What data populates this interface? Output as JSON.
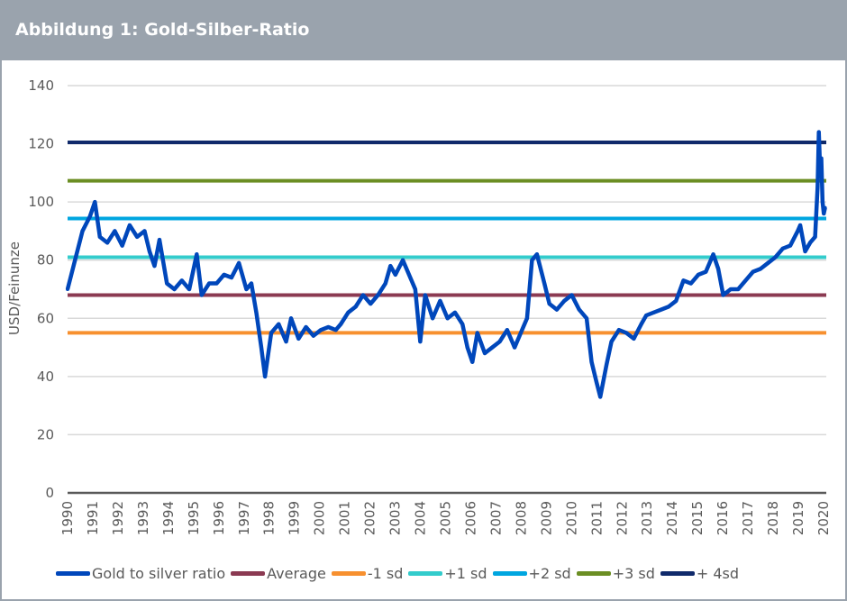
{
  "header": {
    "title": "Abbildung 1: Gold-Silber-Ratio"
  },
  "chart_data": {
    "type": "line",
    "title": "Abbildung 1: Gold-Silber-Ratio",
    "ylabel": "USD/Feinunze",
    "xlabel": "",
    "ylim": [
      0,
      140
    ],
    "yticks": [
      "0",
      "20",
      "40",
      "60",
      "80",
      "100",
      "120",
      "140"
    ],
    "xticks": [
      "1990",
      "1991",
      "1992",
      "1993",
      "1994",
      "1995",
      "1996",
      "1997",
      "1998",
      "1999",
      "2000",
      "2001",
      "2002",
      "2003",
      "2004",
      "2005",
      "2006",
      "2007",
      "2008",
      "2009",
      "2010",
      "2011",
      "2012",
      "2013",
      "2014",
      "2015",
      "2016",
      "2017",
      "2018",
      "2019",
      "2020"
    ],
    "grid": true,
    "legend_position": "bottom",
    "series": [
      {
        "name": "Gold to silver ratio",
        "color": "#0047bb",
        "points": [
          [
            1990.0,
            70
          ],
          [
            1990.3,
            80
          ],
          [
            1990.6,
            90
          ],
          [
            1990.9,
            95
          ],
          [
            1991.1,
            100
          ],
          [
            1991.3,
            88
          ],
          [
            1991.6,
            86
          ],
          [
            1991.9,
            90
          ],
          [
            1992.2,
            85
          ],
          [
            1992.5,
            92
          ],
          [
            1992.8,
            88
          ],
          [
            1993.1,
            90
          ],
          [
            1993.3,
            83
          ],
          [
            1993.5,
            78
          ],
          [
            1993.7,
            87
          ],
          [
            1994.0,
            72
          ],
          [
            1994.3,
            70
          ],
          [
            1994.6,
            73
          ],
          [
            1994.9,
            70
          ],
          [
            1995.2,
            82
          ],
          [
            1995.4,
            68
          ],
          [
            1995.7,
            72
          ],
          [
            1996.0,
            72
          ],
          [
            1996.3,
            75
          ],
          [
            1996.6,
            74
          ],
          [
            1996.9,
            79
          ],
          [
            1997.2,
            70
          ],
          [
            1997.4,
            72
          ],
          [
            1997.6,
            62
          ],
          [
            1997.8,
            50
          ],
          [
            1997.95,
            40
          ],
          [
            1998.2,
            55
          ],
          [
            1998.5,
            58
          ],
          [
            1998.8,
            52
          ],
          [
            1999.0,
            60
          ],
          [
            1999.3,
            53
          ],
          [
            1999.6,
            57
          ],
          [
            1999.9,
            54
          ],
          [
            2000.2,
            56
          ],
          [
            2000.5,
            57
          ],
          [
            2000.8,
            56
          ],
          [
            2001.0,
            58
          ],
          [
            2001.3,
            62
          ],
          [
            2001.6,
            64
          ],
          [
            2001.9,
            68
          ],
          [
            2002.2,
            65
          ],
          [
            2002.5,
            68
          ],
          [
            2002.8,
            72
          ],
          [
            2003.0,
            78
          ],
          [
            2003.2,
            75
          ],
          [
            2003.5,
            80
          ],
          [
            2003.8,
            74
          ],
          [
            2004.0,
            70
          ],
          [
            2004.2,
            52
          ],
          [
            2004.4,
            68
          ],
          [
            2004.7,
            60
          ],
          [
            2005.0,
            66
          ],
          [
            2005.3,
            60
          ],
          [
            2005.6,
            62
          ],
          [
            2005.9,
            58
          ],
          [
            2006.1,
            50
          ],
          [
            2006.3,
            45
          ],
          [
            2006.5,
            55
          ],
          [
            2006.8,
            48
          ],
          [
            2007.1,
            50
          ],
          [
            2007.4,
            52
          ],
          [
            2007.7,
            56
          ],
          [
            2008.0,
            50
          ],
          [
            2008.2,
            54
          ],
          [
            2008.5,
            60
          ],
          [
            2008.7,
            80
          ],
          [
            2008.9,
            82
          ],
          [
            2009.2,
            72
          ],
          [
            2009.4,
            65
          ],
          [
            2009.7,
            63
          ],
          [
            2010.0,
            66
          ],
          [
            2010.3,
            68
          ],
          [
            2010.6,
            63
          ],
          [
            2010.9,
            60
          ],
          [
            2011.1,
            45
          ],
          [
            2011.3,
            38
          ],
          [
            2011.45,
            33
          ],
          [
            2011.7,
            44
          ],
          [
            2011.9,
            52
          ],
          [
            2012.2,
            56
          ],
          [
            2012.5,
            55
          ],
          [
            2012.8,
            53
          ],
          [
            2013.1,
            58
          ],
          [
            2013.3,
            61
          ],
          [
            2013.6,
            62
          ],
          [
            2013.9,
            63
          ],
          [
            2014.2,
            64
          ],
          [
            2014.5,
            66
          ],
          [
            2014.8,
            73
          ],
          [
            2015.1,
            72
          ],
          [
            2015.4,
            75
          ],
          [
            2015.7,
            76
          ],
          [
            2016.0,
            82
          ],
          [
            2016.2,
            77
          ],
          [
            2016.4,
            68
          ],
          [
            2016.7,
            70
          ],
          [
            2017.0,
            70
          ],
          [
            2017.3,
            73
          ],
          [
            2017.6,
            76
          ],
          [
            2017.9,
            77
          ],
          [
            2018.2,
            79
          ],
          [
            2018.5,
            81
          ],
          [
            2018.8,
            84
          ],
          [
            2019.1,
            85
          ],
          [
            2019.4,
            90
          ],
          [
            2019.5,
            92
          ],
          [
            2019.7,
            83
          ],
          [
            2019.9,
            86
          ],
          [
            2020.1,
            88
          ],
          [
            2020.2,
            105
          ],
          [
            2020.25,
            124
          ],
          [
            2020.3,
            112
          ],
          [
            2020.35,
            115
          ],
          [
            2020.4,
            100
          ],
          [
            2020.45,
            96
          ],
          [
            2020.5,
            98
          ]
        ]
      },
      {
        "name": "Average",
        "color": "#8b3a52",
        "value": 68
      },
      {
        "name": "-1 sd",
        "color": "#f7902f",
        "value": 55
      },
      {
        "name": "+1 sd",
        "color": "#33cccc",
        "value": 81
      },
      {
        "name": "+2 sd",
        "color": "#00a6e0",
        "value": 94.3
      },
      {
        "name": "+3 sd",
        "color": "#6b8e23",
        "value": 107.3
      },
      {
        "name": "+ 4sd",
        "color": "#102a6b",
        "value": 120.5
      }
    ]
  }
}
